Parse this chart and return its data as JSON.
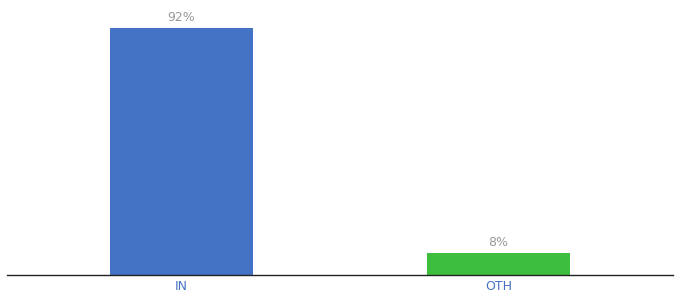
{
  "categories": [
    "IN",
    "OTH"
  ],
  "values": [
    92,
    8
  ],
  "bar_colors": [
    "#4472c4",
    "#3dbf3d"
  ],
  "label_texts": [
    "92%",
    "8%"
  ],
  "background_color": "#ffffff",
  "ylim": [
    0,
    100
  ],
  "bar_width": 0.45,
  "x_positions": [
    0,
    1
  ],
  "xlim": [
    -0.55,
    1.55
  ],
  "figsize": [
    6.8,
    3.0
  ],
  "dpi": 100,
  "tick_fontsize": 9,
  "label_fontsize": 9,
  "label_color": "#999999",
  "tick_color": "#4472c4",
  "spine_color": "#222222"
}
